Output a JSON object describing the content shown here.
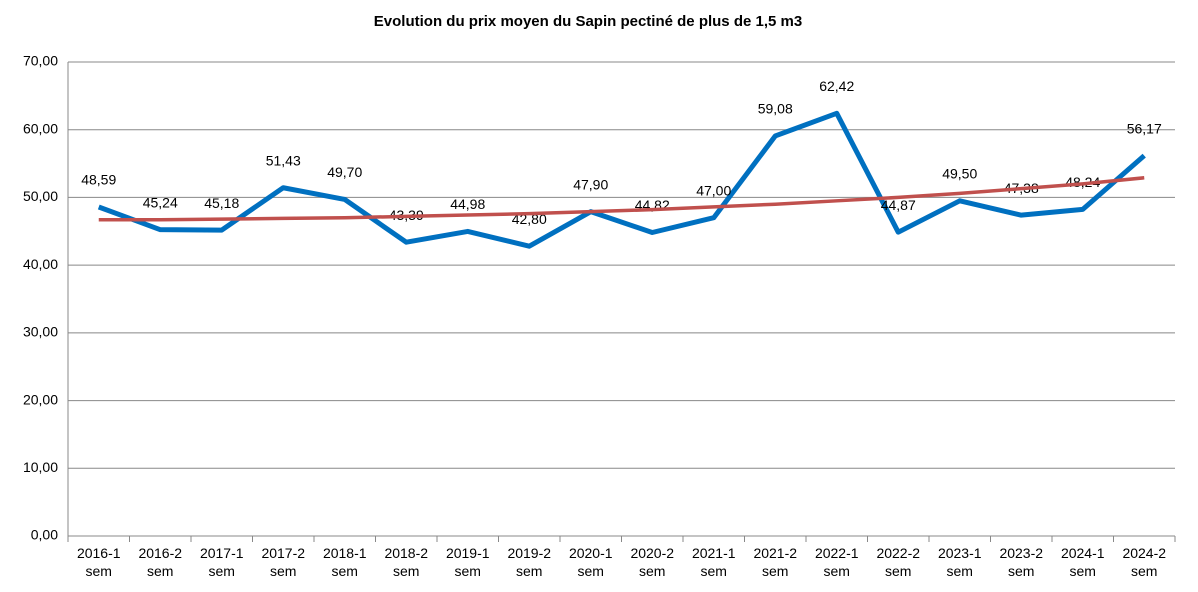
{
  "chart_data": {
    "type": "line",
    "title": "Evolution du prix moyen du Sapin pectiné de plus de 1,5 m3",
    "categories": [
      "2016-1 sem",
      "2016-2 sem",
      "2017-1 sem",
      "2017-2 sem",
      "2018-1 sem",
      "2018-2 sem",
      "2019-1 sem",
      "2019-2 sem",
      "2020-1 sem",
      "2020-2 sem",
      "2021-1 sem",
      "2021-2 sem",
      "2022-1 sem",
      "2022-2 sem",
      "2023-1 sem",
      "2023-2 sem",
      "2024-1 sem",
      "2024-2 sem"
    ],
    "series": [
      {
        "color": "#0070c0",
        "values": [
          48.59,
          45.24,
          45.18,
          51.43,
          49.7,
          43.39,
          44.98,
          42.8,
          47.9,
          44.82,
          47.0,
          59.08,
          62.42,
          44.87,
          49.5,
          47.38,
          48.24,
          56.17
        ],
        "value_labels": [
          "48,59",
          "45,24",
          "45,18",
          "51,43",
          "49,70",
          "43,39",
          "44,98",
          "42,80",
          "47,90",
          "44,82",
          "47,00",
          "59,08",
          "62,42",
          "44,87",
          "49,50",
          "47,38",
          "48,24",
          "56,17"
        ]
      }
    ],
    "trendline": {
      "color": "#c0504d",
      "values": [
        46.7,
        46.7,
        46.8,
        46.9,
        47.0,
        47.2,
        47.4,
        47.6,
        47.9,
        48.2,
        48.6,
        49.0,
        49.5,
        50.0,
        50.6,
        51.3,
        52.0,
        52.9
      ]
    },
    "ylim": [
      0,
      70
    ],
    "yticks": [
      {
        "value": 0,
        "label": "0,00"
      },
      {
        "value": 10,
        "label": "10,00"
      },
      {
        "value": 20,
        "label": "20,00"
      },
      {
        "value": 30,
        "label": "30,00"
      },
      {
        "value": 40,
        "label": "40,00"
      },
      {
        "value": 50,
        "label": "50,00"
      },
      {
        "value": 60,
        "label": "60,00"
      },
      {
        "value": 70,
        "label": "70,00"
      }
    ],
    "grid": true
  }
}
